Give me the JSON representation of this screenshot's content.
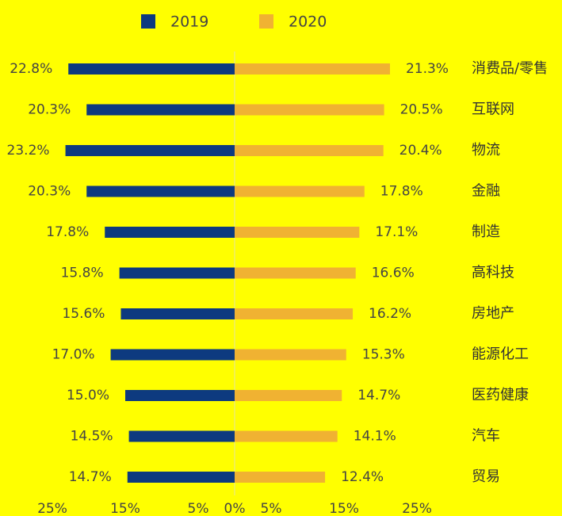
{
  "chart_data": {
    "type": "butterfly-bar",
    "categories": [
      "消费品/零售",
      "互联网",
      "物流",
      "金融",
      "制造",
      "高科技",
      "房地产",
      "能源化工",
      "医药健康",
      "汽车",
      "贸易"
    ],
    "series": [
      {
        "name": "2019",
        "color": "#0d3a7f",
        "side": "left",
        "values": [
          22.8,
          20.3,
          23.2,
          20.3,
          17.8,
          15.8,
          15.6,
          17.0,
          15.0,
          14.5,
          14.7
        ],
        "value_labels": [
          "22.8%",
          "20.3%",
          "23.2%",
          "20.3%",
          "17.8%",
          "15.8%",
          "15.6%",
          "17.0%",
          "15.0%",
          "14.5%",
          "14.7%"
        ]
      },
      {
        "name": "2020",
        "color": "#f0b232",
        "side": "right",
        "values": [
          21.3,
          20.5,
          20.4,
          17.8,
          17.1,
          16.6,
          16.2,
          15.3,
          14.7,
          14.1,
          12.4
        ],
        "value_labels": [
          "21.3%",
          "20.5%",
          "20.4%",
          "17.8%",
          "17.1%",
          "16.6%",
          "16.2%",
          "15.3%",
          "14.7%",
          "14.1%",
          "12.4%"
        ]
      }
    ],
    "xlim": [
      0,
      25
    ],
    "xticks": [
      {
        "value": 0,
        "label": "0%"
      },
      {
        "value": 5,
        "label": "5%"
      },
      {
        "value": 15,
        "label": "15%"
      },
      {
        "value": 25,
        "label": "25%"
      }
    ],
    "legend": "top"
  }
}
